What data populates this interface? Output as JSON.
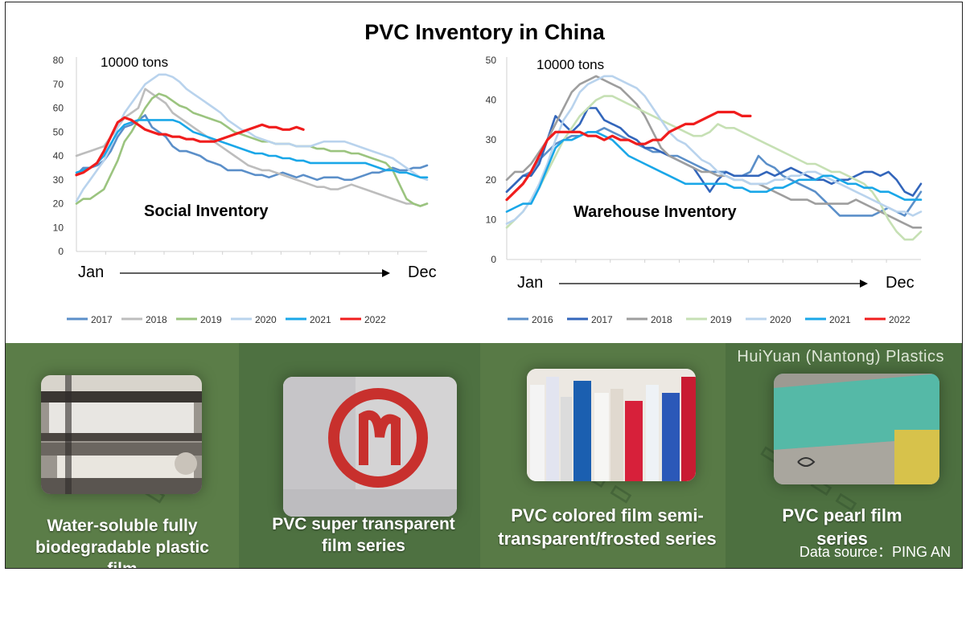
{
  "title": "PVC Inventory in China",
  "chart_data": [
    {
      "type": "line",
      "title": "Social Inventory",
      "unit_label": "10000 tons",
      "xlabel_start": "Jan",
      "xlabel_end": "Dec",
      "ylim": [
        0,
        80
      ],
      "yticks": [
        "0",
        "10",
        "20",
        "30",
        "40",
        "50",
        "60",
        "70",
        "80"
      ],
      "x_points": 52,
      "legend_position": "bottom",
      "series": [
        {
          "name": "2017",
          "color": "#5b8fc9",
          "values": [
            32,
            35,
            35,
            36,
            38,
            42,
            48,
            52,
            53,
            55,
            57,
            52,
            50,
            48,
            44,
            42,
            42,
            41,
            40,
            38,
            37,
            36,
            34,
            34,
            34,
            33,
            32,
            32,
            31,
            32,
            33,
            32,
            31,
            32,
            31,
            30,
            31,
            31,
            31,
            30,
            30,
            31,
            32,
            33,
            33,
            34,
            35,
            34,
            34,
            35,
            35,
            36
          ]
        },
        {
          "name": "2018",
          "color": "#bdbdbd",
          "values": [
            40,
            41,
            42,
            43,
            44,
            48,
            52,
            56,
            58,
            60,
            68,
            66,
            64,
            62,
            58,
            56,
            54,
            52,
            50,
            48,
            46,
            44,
            42,
            40,
            38,
            36,
            35,
            34,
            34,
            33,
            32,
            31,
            30,
            29,
            28,
            27,
            27,
            26,
            26,
            27,
            28,
            27,
            26,
            25,
            24,
            23,
            22,
            21,
            20,
            20,
            19,
            20
          ]
        },
        {
          "name": "2019",
          "color": "#9bc47f",
          "values": [
            20,
            22,
            22,
            24,
            26,
            32,
            38,
            46,
            50,
            55,
            60,
            64,
            66,
            65,
            63,
            61,
            60,
            58,
            57,
            56,
            55,
            54,
            52,
            50,
            49,
            48,
            47,
            46,
            46,
            45,
            45,
            45,
            44,
            44,
            44,
            43,
            43,
            42,
            42,
            42,
            41,
            41,
            40,
            39,
            38,
            37,
            34,
            28,
            22,
            20,
            19,
            20
          ]
        },
        {
          "name": "2020",
          "color": "#b9d3ed",
          "values": [
            21,
            26,
            30,
            34,
            38,
            44,
            52,
            58,
            62,
            66,
            70,
            72,
            74,
            74,
            73,
            71,
            68,
            66,
            64,
            62,
            60,
            58,
            55,
            53,
            51,
            50,
            48,
            47,
            46,
            45,
            45,
            45,
            44,
            44,
            44,
            45,
            46,
            46,
            46,
            46,
            45,
            44,
            43,
            42,
            41,
            40,
            39,
            37,
            35,
            33,
            31,
            30
          ]
        },
        {
          "name": "2021",
          "color": "#1aa7e8",
          "values": [
            33,
            34,
            35,
            37,
            40,
            45,
            50,
            53,
            54,
            55,
            55,
            55,
            55,
            55,
            55,
            54,
            52,
            50,
            49,
            48,
            47,
            46,
            45,
            44,
            43,
            42,
            41,
            41,
            40,
            40,
            39,
            39,
            38,
            38,
            37,
            37,
            37,
            37,
            37,
            37,
            37,
            37,
            37,
            36,
            35,
            34,
            34,
            33,
            33,
            32,
            31,
            31
          ]
        },
        {
          "name": "2022",
          "color": "#f01d1d",
          "values": [
            32,
            33,
            35,
            37,
            42,
            48,
            54,
            56,
            55,
            53,
            51,
            50,
            49,
            49,
            48,
            48,
            47,
            47,
            46,
            46,
            46,
            47,
            48,
            49,
            50,
            51,
            52,
            53,
            52,
            52,
            51,
            51,
            52,
            51
          ]
        }
      ]
    },
    {
      "type": "line",
      "title": "Warehouse Inventory",
      "unit_label": "10000 tons",
      "xlabel_start": "Jan",
      "xlabel_end": "Dec",
      "ylim": [
        0,
        50
      ],
      "yticks": [
        "0",
        "10",
        "20",
        "30",
        "40",
        "50"
      ],
      "x_points": 52,
      "legend_position": "bottom",
      "series": [
        {
          "name": "2016",
          "color": "#5b8fc9",
          "values": [
            17,
            19,
            21,
            22,
            25,
            27,
            29,
            30,
            31,
            31,
            32,
            32,
            33,
            32,
            31,
            30,
            29,
            28,
            27,
            27,
            26,
            26,
            25,
            24,
            23,
            22,
            22,
            22,
            21,
            21,
            22,
            26,
            24,
            23,
            21,
            20,
            19,
            18,
            17,
            15,
            13,
            11,
            11,
            11,
            11,
            11,
            12,
            13,
            12,
            11,
            14,
            17
          ]
        },
        {
          "name": "2017",
          "color": "#3366bb",
          "values": [
            17,
            19,
            21,
            21,
            24,
            30,
            36,
            34,
            32,
            34,
            38,
            38,
            35,
            34,
            33,
            31,
            30,
            28,
            28,
            27,
            26,
            25,
            24,
            23,
            20,
            17,
            20,
            22,
            21,
            21,
            21,
            21,
            22,
            21,
            22,
            23,
            22,
            21,
            20,
            20,
            19,
            20,
            20,
            21,
            22,
            22,
            21,
            22,
            20,
            17,
            16,
            19
          ]
        },
        {
          "name": "2018",
          "color": "#9e9e9e",
          "values": [
            20,
            22,
            22,
            24,
            27,
            30,
            34,
            38,
            42,
            44,
            45,
            46,
            45,
            44,
            43,
            41,
            39,
            36,
            32,
            28,
            26,
            25,
            24,
            23,
            22,
            22,
            21,
            21,
            20,
            20,
            19,
            19,
            18,
            17,
            16,
            15,
            15,
            15,
            14,
            14,
            14,
            14,
            14,
            15,
            14,
            13,
            12,
            11,
            10,
            9,
            8,
            8
          ]
        },
        {
          "name": "2019",
          "color": "#c6e0b4",
          "values": [
            8,
            10,
            12,
            15,
            18,
            22,
            26,
            30,
            33,
            36,
            38,
            40,
            41,
            41,
            40,
            39,
            38,
            37,
            36,
            35,
            34,
            33,
            32,
            31,
            31,
            32,
            34,
            33,
            33,
            32,
            31,
            30,
            29,
            28,
            27,
            26,
            25,
            24,
            24,
            23,
            22,
            22,
            21,
            20,
            19,
            17,
            14,
            10,
            7,
            5,
            5,
            7
          ]
        },
        {
          "name": "2020",
          "color": "#b9d3ed",
          "values": [
            9,
            10,
            12,
            15,
            19,
            24,
            30,
            35,
            38,
            42,
            44,
            45,
            46,
            46,
            45,
            44,
            43,
            41,
            38,
            35,
            32,
            30,
            29,
            27,
            25,
            24,
            22,
            21,
            20,
            20,
            19,
            19,
            19,
            20,
            20,
            21,
            21,
            22,
            22,
            21,
            20,
            19,
            18,
            17,
            16,
            15,
            14,
            13,
            12,
            12,
            11,
            12
          ]
        },
        {
          "name": "2021",
          "color": "#1aa7e8",
          "values": [
            12,
            13,
            14,
            14,
            18,
            23,
            28,
            30,
            30,
            31,
            32,
            32,
            31,
            30,
            28,
            26,
            25,
            24,
            23,
            22,
            21,
            20,
            19,
            19,
            19,
            19,
            19,
            19,
            18,
            18,
            17,
            17,
            17,
            18,
            18,
            19,
            20,
            20,
            20,
            21,
            21,
            20,
            19,
            19,
            18,
            18,
            17,
            17,
            16,
            15,
            15,
            15
          ]
        },
        {
          "name": "2022",
          "color": "#f01d1d",
          "values": [
            15,
            17,
            19,
            22,
            26,
            30,
            32,
            32,
            32,
            32,
            31,
            31,
            30,
            31,
            30,
            30,
            29,
            29,
            30,
            30,
            32,
            33,
            34,
            34,
            35,
            36,
            37,
            37,
            37,
            36,
            36
          ]
        }
      ]
    }
  ],
  "banner": {
    "brand": "HuiYuan (Nantong) Plastics",
    "source": "Data source：PING AN",
    "products": [
      {
        "caption_line1": "Water-soluble fully",
        "caption_line2": "biodegradable plastic film"
      },
      {
        "caption_line1": "PVC super transparent",
        "caption_line2": "film series"
      },
      {
        "caption_line1": "PVC colored film semi-",
        "caption_line2": "transparent/frosted series"
      },
      {
        "caption_line1": "PVC pearl film",
        "caption_line2": "series"
      }
    ],
    "colors": {
      "banner_bg": "#5d7f4a",
      "panel_alt": "#4d7040"
    }
  }
}
